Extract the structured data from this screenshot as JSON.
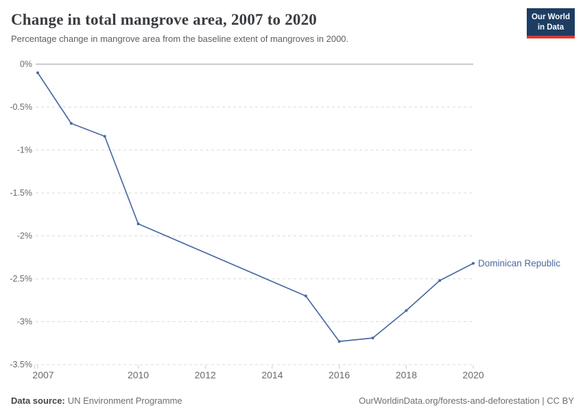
{
  "logo": {
    "line1": "Our World",
    "line2": "in Data"
  },
  "footer": {
    "source_label": "Data source:",
    "source_value": "UN Environment Programme",
    "rights": "OurWorldinData.org/forests-and-deforestation | CC BY"
  },
  "colors": {
    "series_blue": "#4a69a2",
    "grid": "#dadada",
    "zero_line": "#c0c0c0",
    "tick_mark": "#cccccc",
    "axis_text": "#696969",
    "logo_bg": "#1d3d63",
    "logo_red": "#dc3a2e"
  },
  "chart_data": {
    "type": "line",
    "title": "Change in total mangrove area, 2007 to 2020",
    "subtitle": "Percentage change in mangrove area from the baseline extent of mangroves in 2000.",
    "xlabel": "",
    "ylabel": "",
    "xlim": [
      2007,
      2020
    ],
    "ylim": [
      -3.5,
      0
    ],
    "grid": "dashed-horizontal",
    "legend_position": "end-of-line-label",
    "x_ticks": [
      2007,
      2010,
      2012,
      2014,
      2016,
      2018,
      2020
    ],
    "y_ticks": [
      {
        "value": 0,
        "label": "0%"
      },
      {
        "value": -0.5,
        "label": "-0.5%"
      },
      {
        "value": -1,
        "label": "-1%"
      },
      {
        "value": -1.5,
        "label": "-1.5%"
      },
      {
        "value": -2,
        "label": "-2%"
      },
      {
        "value": -2.5,
        "label": "-2.5%"
      },
      {
        "value": -3,
        "label": "-3%"
      },
      {
        "value": -3.5,
        "label": "-3.5%"
      }
    ],
    "series": [
      {
        "name": "Dominican Republic",
        "color": "#4a69a2",
        "points": [
          {
            "x": 2007,
            "y": -0.1
          },
          {
            "x": 2008,
            "y": -0.69
          },
          {
            "x": 2009,
            "y": -0.84
          },
          {
            "x": 2010,
            "y": -1.86
          },
          {
            "x": 2015,
            "y": -2.7
          },
          {
            "x": 2016,
            "y": -3.23
          },
          {
            "x": 2017,
            "y": -3.19
          },
          {
            "x": 2018,
            "y": -2.87
          },
          {
            "x": 2019,
            "y": -2.52
          },
          {
            "x": 2020,
            "y": -2.32
          }
        ]
      }
    ]
  }
}
